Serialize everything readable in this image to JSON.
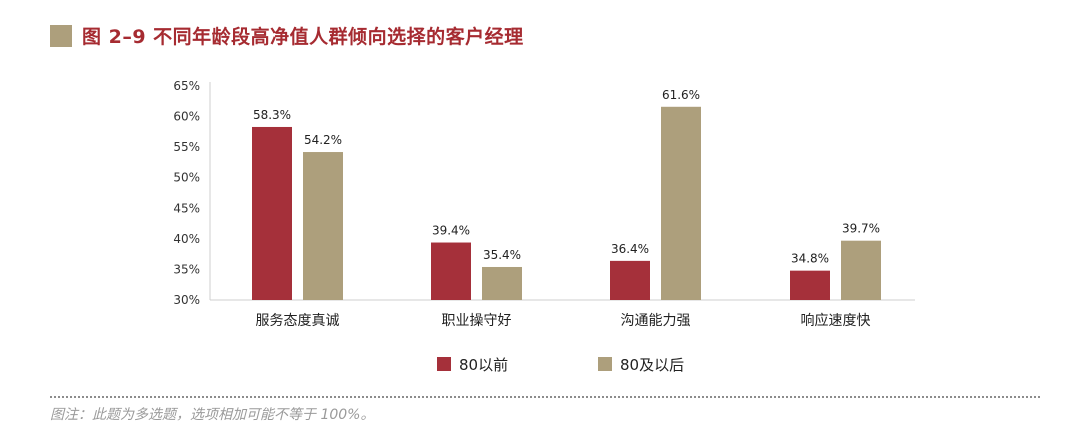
{
  "title": "图 2–9  不同年龄段高净值人群倾向选择的客户经理",
  "note": "图注：此题为多选题，选项相加可能不等于 100%。",
  "colors": {
    "accent_title": "#a62b31",
    "series_1": "#a5303a",
    "series_2": "#ad9f7c",
    "title_square": "#ad9f7c"
  },
  "chart_data": {
    "type": "bar",
    "categories": [
      "服务态度真诚",
      "职业操守好",
      "沟通能力强",
      "响应速度快"
    ],
    "series": [
      {
        "name": "80以前",
        "values": [
          58.3,
          39.4,
          36.4,
          34.8
        ],
        "labels": [
          "58.3%",
          "39.4%",
          "36.4%",
          "34.8%"
        ]
      },
      {
        "name": "80及以后",
        "values": [
          54.2,
          35.4,
          61.6,
          39.7
        ],
        "labels": [
          "54.2%",
          "35.4%",
          "61.6%",
          "39.7%"
        ]
      }
    ],
    "ylim": [
      30,
      65
    ],
    "yticks": [
      "30%",
      "35%",
      "40%",
      "45%",
      "50%",
      "55%",
      "60%",
      "65%"
    ],
    "ytick_values": [
      30,
      35,
      40,
      45,
      50,
      55,
      60,
      65
    ],
    "legend": "bottom-center",
    "grid": false
  }
}
